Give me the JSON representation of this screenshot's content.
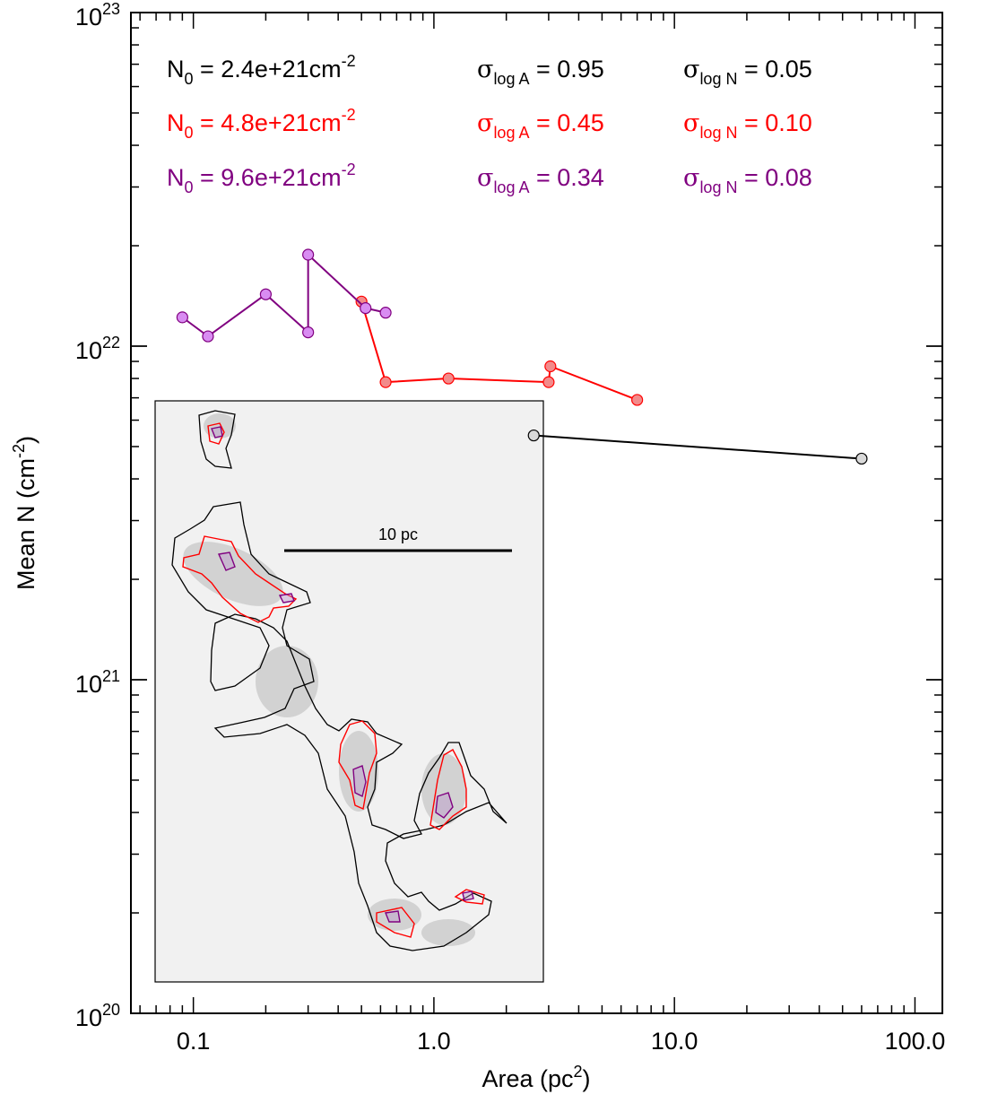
{
  "chart_data": {
    "type": "scatter",
    "x_scale": "log",
    "y_scale": "log",
    "xlabel": "Area (pc²)",
    "xlabel_main": "Area (pc",
    "xlabel_sup": "2",
    "xlabel_tail": ")",
    "ylabel": "Mean N (cm⁻²)",
    "ylabel_main": "Mean N (cm",
    "ylabel_sup": "-2",
    "ylabel_tail": ")",
    "xlim": [
      0.055,
      130
    ],
    "ylim": [
      1e+20,
      1e+23
    ],
    "x_ticks": [
      {
        "value": 0.1,
        "label": "0.1"
      },
      {
        "value": 1,
        "label": "1.0"
      },
      {
        "value": 10,
        "label": "10.0"
      },
      {
        "value": 100,
        "label": "100.0"
      }
    ],
    "y_ticks": [
      {
        "value": 1e+20,
        "base": "10",
        "exp": "20"
      },
      {
        "value": 1e+21,
        "base": "10",
        "exp": "21"
      },
      {
        "value": 1e+22,
        "base": "10",
        "exp": "22"
      },
      {
        "value": 1e+23,
        "base": "10",
        "exp": "23"
      }
    ],
    "grid": false,
    "series": [
      {
        "color": "#000000",
        "fill": "#d9d9d9",
        "points": [
          [
            2.6,
            5.4e+21
          ],
          [
            60,
            4.6e+21
          ]
        ]
      },
      {
        "color": "#ff0000",
        "fill": "#f28b8b",
        "points": [
          [
            0.5,
            1.36e+22
          ],
          [
            0.63,
            7.8e+21
          ],
          [
            1.15,
            8e+21
          ],
          [
            3.0,
            7.8e+21
          ],
          [
            3.05,
            8.7e+21
          ],
          [
            7.0,
            6.9e+21
          ]
        ]
      },
      {
        "color": "#800080",
        "fill": "#d98cf2",
        "points": [
          [
            0.09,
            1.22e+22
          ],
          [
            0.115,
            1.07e+22
          ],
          [
            0.2,
            1.43e+22
          ],
          [
            0.3,
            1.1e+22
          ],
          [
            0.3,
            1.88e+22
          ],
          [
            0.52,
            1.3e+22
          ],
          [
            0.63,
            1.26e+22
          ]
        ]
      }
    ],
    "annotations": [
      {
        "color": "#000000",
        "n0": "N",
        "n0_sub": "0",
        "n0_val": " = 2.4e+21cm",
        "n0_sup": "-2",
        "sa_val": " = 0.95",
        "sn_val": " = 0.05"
      },
      {
        "color": "#ff0000",
        "n0": "N",
        "n0_sub": "0",
        "n0_val": " = 4.8e+21cm",
        "n0_sup": "-2",
        "sa_val": " = 0.45",
        "sn_val": " = 0.10"
      },
      {
        "color": "#800080",
        "n0": "N",
        "n0_sub": "0",
        "n0_val": " = 9.6e+21cm",
        "n0_sup": "-2",
        "sa_val": " = 0.34",
        "sn_val": " = 0.08"
      }
    ],
    "sigma_symbol": "σ",
    "sigma_sub_a": "log A",
    "sigma_sub_n": "log N",
    "inset": {
      "scale_bar_label": "10 pc",
      "contour_colors": [
        "#000000",
        "#ff0000",
        "#800080"
      ],
      "background": "#f1f1f1"
    }
  }
}
